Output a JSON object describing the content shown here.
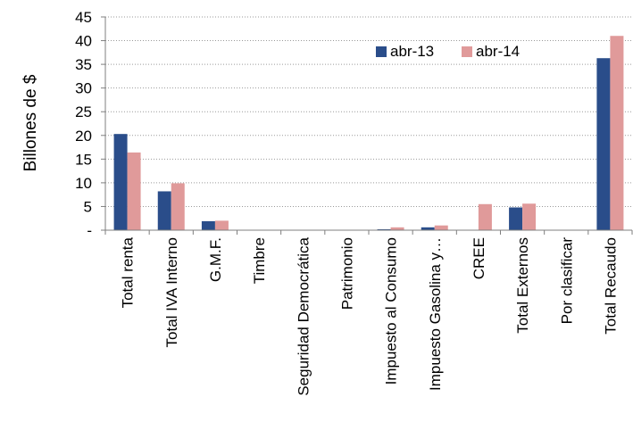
{
  "chart_data": {
    "type": "bar",
    "title": "",
    "xlabel": "",
    "ylabel": "Billones de $",
    "ylim": [
      0,
      45
    ],
    "yticks": [
      0,
      5,
      10,
      15,
      20,
      25,
      30,
      35,
      40,
      45
    ],
    "ytick_labels": [
      "-",
      "5",
      "10",
      "15",
      "20",
      "25",
      "30",
      "35",
      "40",
      "45"
    ],
    "grid": "horizontal dotted",
    "legend_position": "top-right",
    "categories": [
      "Total renta",
      "Total IVA Interno",
      "G.M.F.",
      "Timbre",
      "Seguridad Democrática",
      "Patrimonio",
      "Impuesto al Consumo",
      "Impuesto Gasolina y…",
      "CREE",
      "Total Externos",
      "Por clasificar",
      "Total Recaudo"
    ],
    "series": [
      {
        "name": "abr-13",
        "color": "#2a4d8a",
        "values": [
          20.3,
          8.2,
          1.9,
          0.05,
          0.0,
          0.05,
          0.2,
          0.6,
          0.0,
          4.8,
          0.0,
          36.3
        ]
      },
      {
        "name": "abr-14",
        "color": "#e09a9a",
        "values": [
          16.4,
          9.9,
          2.0,
          0.05,
          0.0,
          0.05,
          0.6,
          1.0,
          5.5,
          5.6,
          0.0,
          41.0
        ]
      }
    ]
  }
}
